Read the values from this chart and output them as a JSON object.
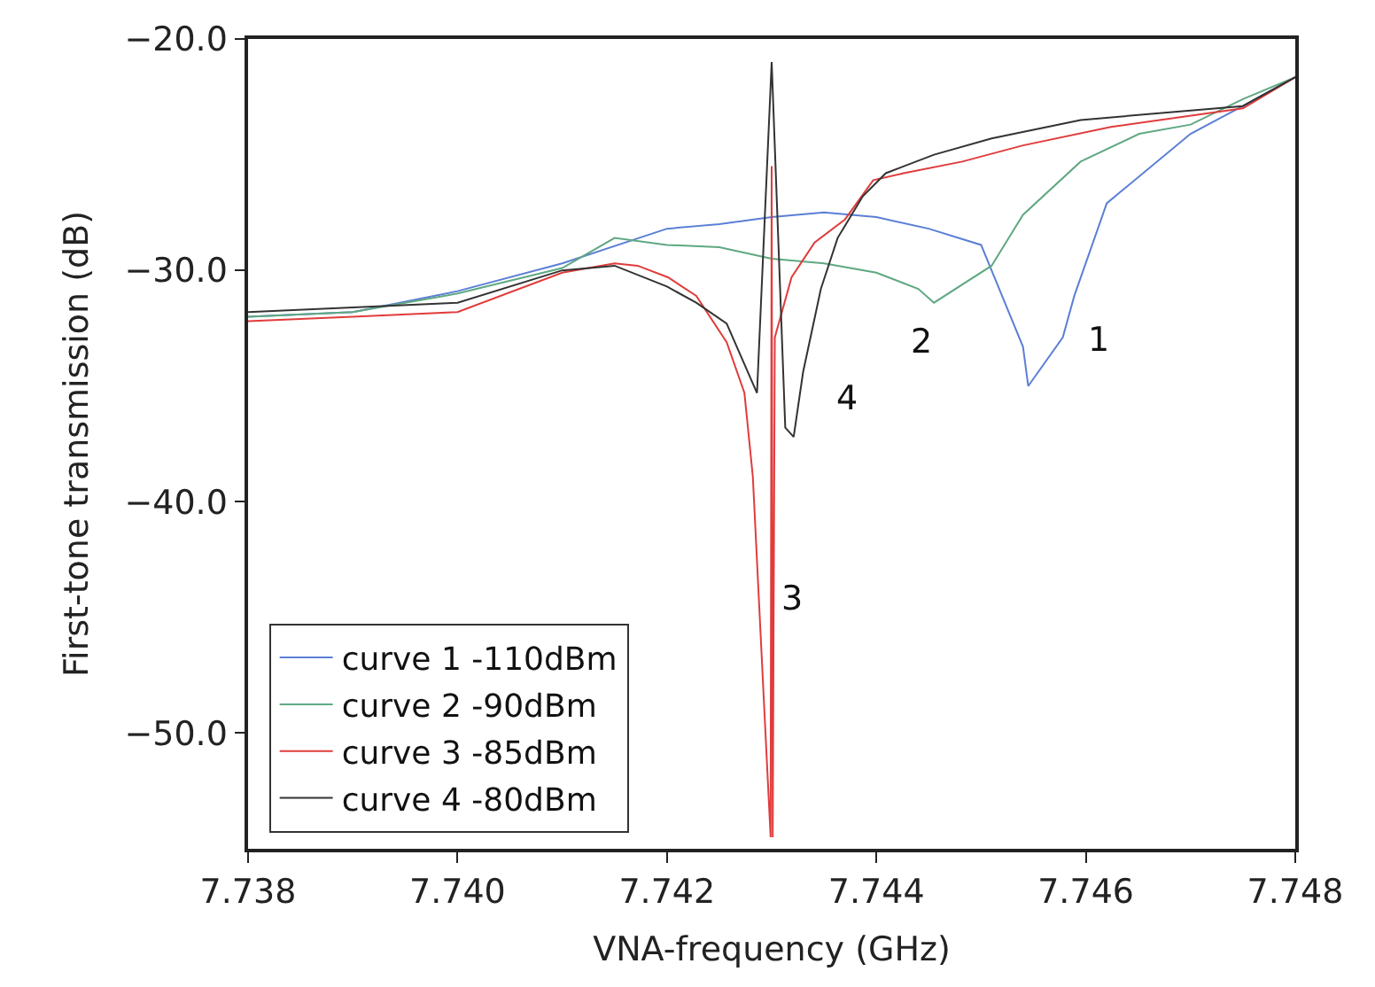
{
  "chart_data": {
    "type": "line",
    "xlabel": "VNA-frequency (GHz)",
    "ylabel": "First-tone transmission (dB)",
    "xlim": [
      7.738,
      7.748
    ],
    "xticks": [
      {
        "value": 7.738,
        "label": "7.738"
      },
      {
        "value": 7.74,
        "label": "7.740"
      },
      {
        "value": 7.742,
        "label": "7.742"
      },
      {
        "value": 7.744,
        "label": "7.744"
      },
      {
        "value": 7.746,
        "label": "7.746"
      },
      {
        "value": 7.748,
        "label": "7.748"
      }
    ],
    "ylim": [
      -55,
      -20
    ],
    "yticks": [
      {
        "value": -50,
        "label": "−50.0"
      },
      {
        "value": -40,
        "label": "−40.0"
      },
      {
        "value": -30,
        "label": "−30.0"
      },
      {
        "value": -20,
        "label": "−20.0"
      }
    ],
    "legend": "bottom left",
    "marker": "none",
    "line_style": "solid",
    "series": [
      {
        "name": "curve 1 -110dBm",
        "color": "#5b7fd6",
        "x": [
          7.738,
          7.739,
          7.74,
          7.741,
          7.742,
          7.7425,
          7.743,
          7.7435,
          7.744,
          7.7445,
          7.745,
          7.7452,
          7.7454,
          7.74545,
          7.74578,
          7.74589,
          7.7462,
          7.747,
          7.7475,
          7.748
        ],
        "values": [
          -32.0,
          -31.8,
          -30.9,
          -29.7,
          -28.2,
          -28.0,
          -27.7,
          -27.5,
          -27.7,
          -28.2,
          -28.9,
          -31.1,
          -33.3,
          -35.0,
          -32.9,
          -31.1,
          -27.1,
          -24.1,
          -22.9,
          -21.65
        ]
      },
      {
        "name": "curve 2 -90dBm",
        "color": "#5fa882",
        "x": [
          7.738,
          7.739,
          7.74,
          7.741,
          7.7415,
          7.742,
          7.7425,
          7.743,
          7.7435,
          7.744,
          7.7444,
          7.74455,
          7.7451,
          7.7454,
          7.74595,
          7.74651,
          7.747,
          7.7475,
          7.748
        ],
        "values": [
          -32.0,
          -31.8,
          -31.0,
          -29.9,
          -28.6,
          -28.9,
          -29.0,
          -29.5,
          -29.7,
          -30.1,
          -30.8,
          -31.4,
          -29.8,
          -27.6,
          -25.3,
          -24.1,
          -23.7,
          -22.6,
          -21.65
        ]
      },
      {
        "name": "curve 3 -85dBm",
        "color": "#e03c3c",
        "x": [
          7.738,
          7.739,
          7.74,
          7.741,
          7.7415,
          7.74172,
          7.74201,
          7.74228,
          7.74257,
          7.74274,
          7.74282,
          7.74299,
          7.743,
          7.74301,
          7.74303,
          7.74319,
          7.74341,
          7.7437,
          7.74397,
          7.74426,
          7.74482,
          7.7454,
          7.74624,
          7.7475,
          7.748
        ],
        "values": [
          -32.2,
          -32.0,
          -31.8,
          -30.1,
          -29.7,
          -29.8,
          -30.3,
          -31.1,
          -33.1,
          -35.3,
          -38.9,
          -54.5,
          -25.5,
          -54.5,
          -32.9,
          -30.3,
          -28.8,
          -27.8,
          -26.1,
          -25.8,
          -25.3,
          -24.6,
          -23.8,
          -23.0,
          -21.65
        ]
      },
      {
        "name": "curve 4 -80dBm",
        "color": "#333333",
        "x": [
          7.738,
          7.739,
          7.74,
          7.741,
          7.7415,
          7.742,
          7.74228,
          7.74257,
          7.74286,
          7.743,
          7.74313,
          7.74321,
          7.7433,
          7.74347,
          7.74363,
          7.74387,
          7.74409,
          7.74455,
          7.7451,
          7.74595,
          7.7475,
          7.748
        ],
        "values": [
          -31.8,
          -31.6,
          -31.4,
          -30.0,
          -29.8,
          -30.7,
          -31.4,
          -32.3,
          -35.3,
          -21.0,
          -36.8,
          -37.2,
          -34.4,
          -30.8,
          -28.6,
          -26.8,
          -25.8,
          -25.0,
          -24.3,
          -23.5,
          -22.9,
          -21.65
        ]
      }
    ],
    "annotations": [
      {
        "text": "1",
        "x": 7.74589,
        "y": -31.1
      },
      {
        "text": "2",
        "x": 7.74455,
        "y": -31.4
      },
      "3",
      {
        "text": "4",
        "x": 7.74321,
        "y": -37.2
      }
    ]
  }
}
